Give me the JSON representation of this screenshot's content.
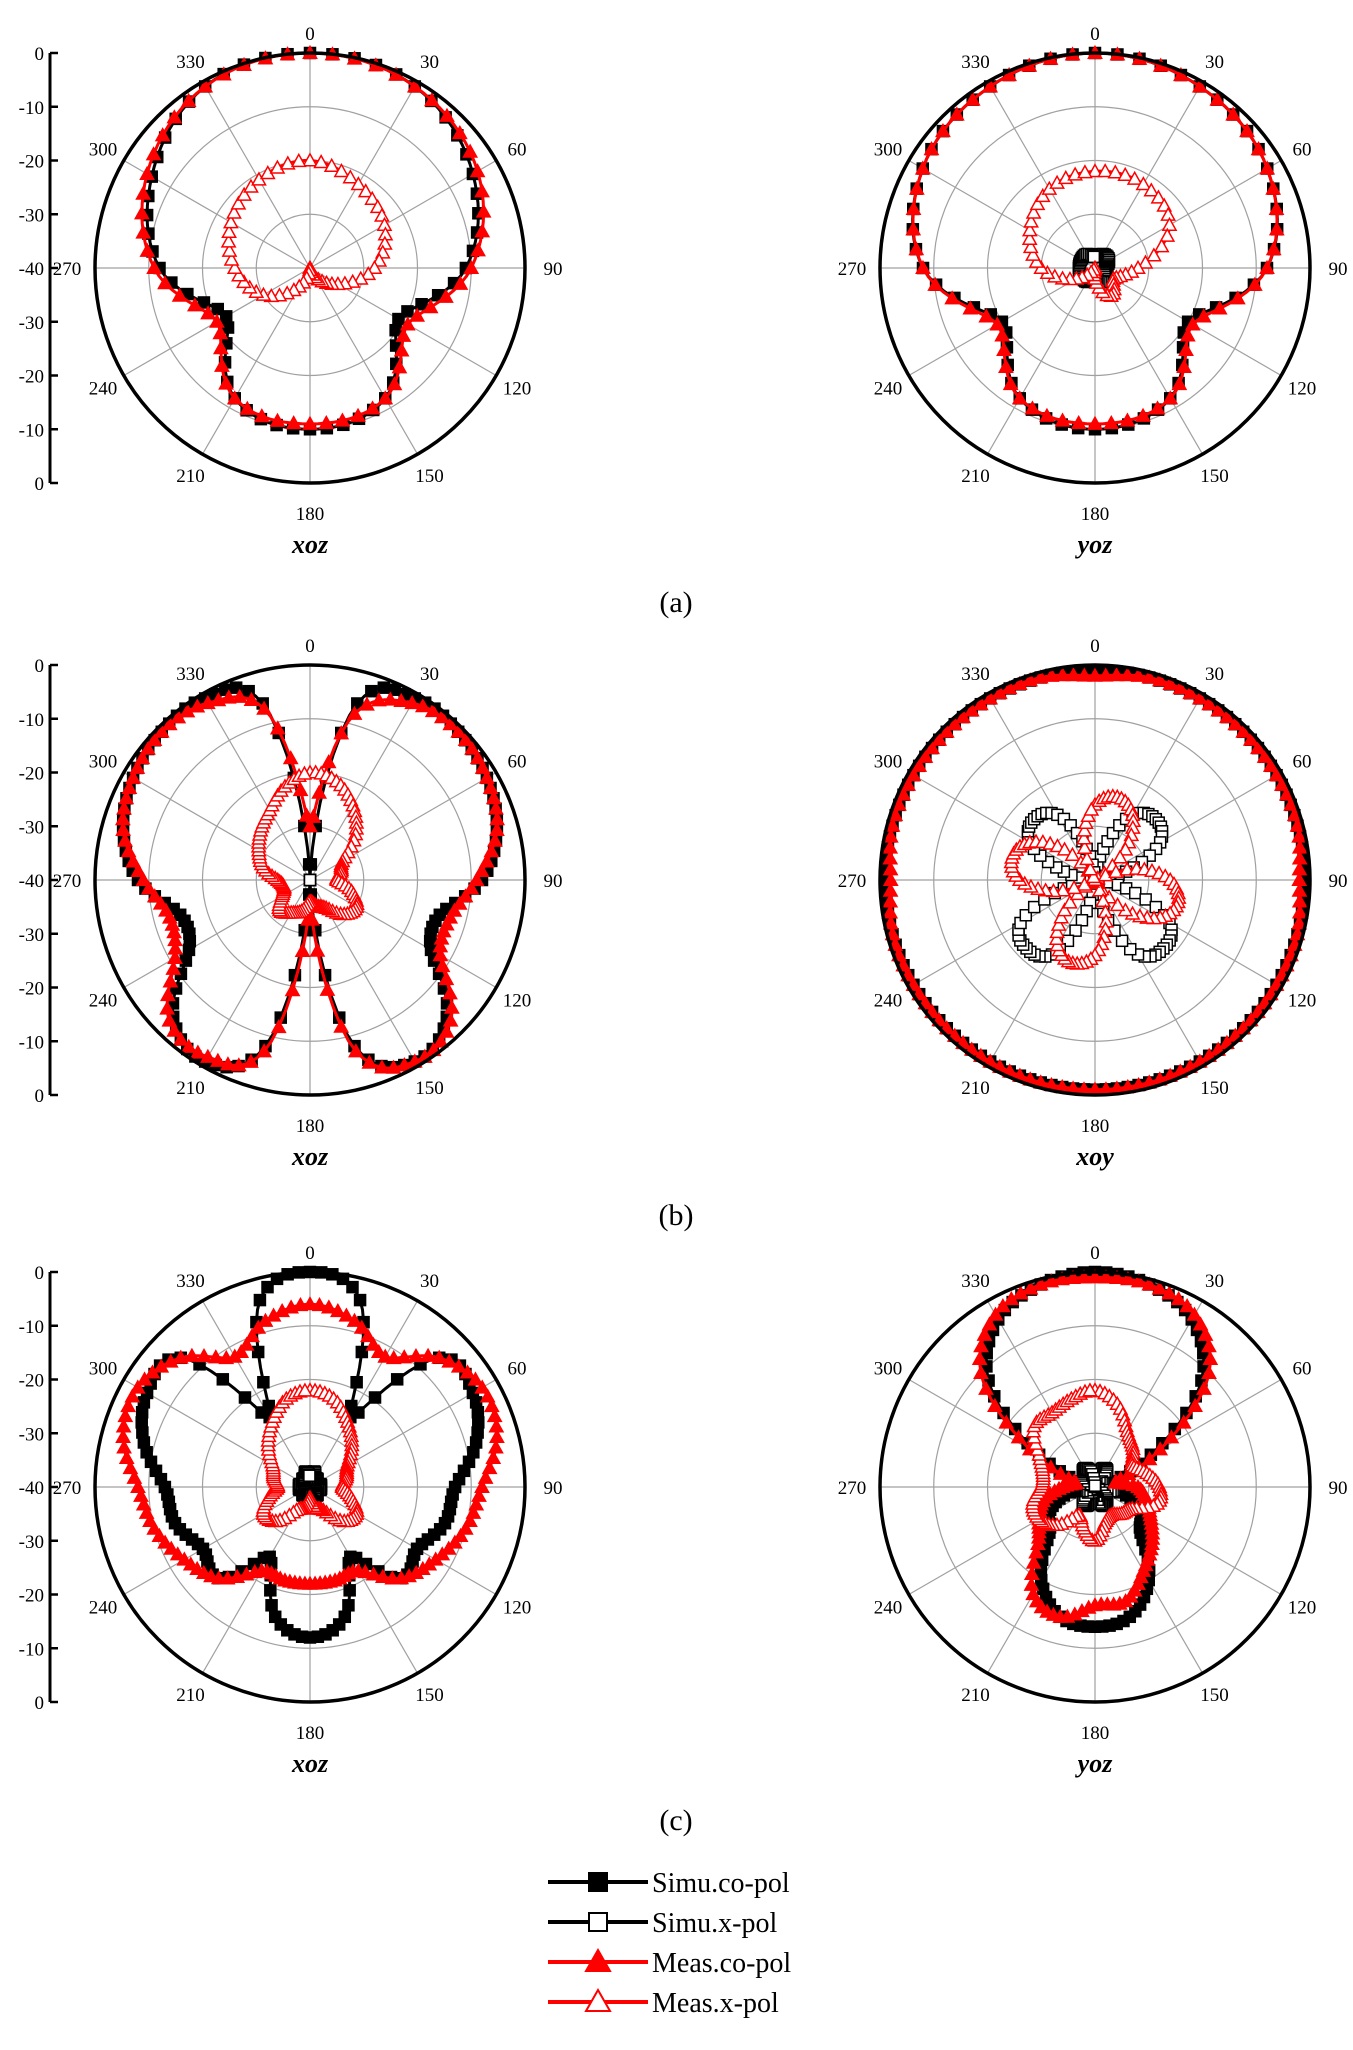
{
  "chart_data": [
    {
      "type": "line",
      "panel": "a",
      "plane_label": "xoz",
      "radial_ticks": [
        "0",
        "-10",
        "-20",
        "-30",
        "-40",
        "-30",
        "-20",
        "-10",
        "0"
      ],
      "angle_ticks": [
        "0",
        "30",
        "60",
        "90",
        "120",
        "150",
        "180",
        "210",
        "240",
        "270",
        "300",
        "330"
      ],
      "rlim": [
        -40,
        0
      ],
      "angles_deg": [
        0,
        30,
        60,
        90,
        120,
        150,
        180,
        210,
        240,
        270,
        300,
        330
      ],
      "series": [
        {
          "name": "Simu.co-pol",
          "values": [
            0,
            -1,
            -5,
            -11,
            -21,
            -12,
            -10,
            -12,
            -22,
            -12,
            -6,
            -1
          ]
        },
        {
          "name": "Meas.co-pol",
          "values": [
            0,
            -1,
            -4,
            -10,
            -19,
            -12,
            -11,
            -12,
            -20,
            -11,
            -5,
            -1
          ]
        },
        {
          "name": "Meas.x-pol",
          "values": [
            -20,
            -22,
            -24,
            -28,
            -34,
            -38,
            -40,
            -36,
            -30,
            -26,
            -23,
            -21
          ]
        }
      ]
    },
    {
      "type": "line",
      "panel": "a",
      "plane_label": "yoz",
      "radial_ticks": [],
      "angle_ticks": [
        "0",
        "30",
        "60",
        "90",
        "120",
        "150",
        "180",
        "210",
        "240",
        "270",
        "300",
        "330"
      ],
      "rlim": [
        -40,
        0
      ],
      "angles_deg": [
        0,
        30,
        60,
        90,
        120,
        150,
        180,
        210,
        240,
        270,
        300,
        330
      ],
      "series": [
        {
          "name": "Simu.co-pol",
          "values": [
            0,
            -1,
            -3,
            -8,
            -20,
            -12,
            -10,
            -12,
            -20,
            -8,
            -3,
            -1
          ]
        },
        {
          "name": "Simu.x-pol",
          "values": [
            -38,
            -37,
            -37,
            -38,
            -38,
            -37,
            -38,
            -37,
            -37,
            -37,
            -37,
            -37
          ]
        },
        {
          "name": "Meas.co-pol",
          "values": [
            0,
            -1,
            -3,
            -8,
            -19,
            -12,
            -11,
            -12,
            -19,
            -8,
            -3,
            -1
          ]
        },
        {
          "name": "Meas.x-pol",
          "values": [
            -22,
            -22,
            -24,
            -32,
            -36,
            -34,
            -38,
            -40,
            -36,
            -30,
            -26,
            -23
          ]
        }
      ]
    },
    {
      "type": "line",
      "panel": "b",
      "plane_label": "xoz",
      "radial_ticks": [
        "0",
        "-10",
        "-20",
        "-30",
        "-40",
        "-30",
        "-20",
        "-10",
        "0"
      ],
      "angle_ticks": [
        "0",
        "30",
        "60",
        "90",
        "120",
        "150",
        "180",
        "210",
        "240",
        "270",
        "300",
        "330"
      ],
      "rlim": [
        -40,
        0
      ],
      "angles_deg": [
        0,
        15,
        30,
        45,
        60,
        75,
        90,
        105,
        120,
        135,
        150,
        165,
        180,
        195,
        210,
        225,
        240,
        255,
        270,
        285,
        300,
        315,
        330,
        345
      ],
      "series": [
        {
          "name": "Simu.co-pol",
          "values": [
            -40,
            -6,
            -1,
            -1,
            -2,
            -4,
            -8,
            -15,
            -14,
            -4,
            -1,
            -8,
            -40,
            -8,
            -1,
            -4,
            -14,
            -15,
            -8,
            -4,
            -2,
            -1,
            -1,
            -6
          ]
        },
        {
          "name": "Simu.x-pol",
          "values": [
            -40,
            -40,
            -40,
            -40,
            -40,
            -40,
            -40,
            -40,
            -40,
            -40,
            -40,
            -40,
            -40,
            -40,
            -40,
            -40,
            -40,
            -40,
            -40,
            -40,
            -40,
            -40,
            -40,
            -40
          ]
        },
        {
          "name": "Meas.co-pol",
          "values": [
            -30,
            -8,
            -2,
            -1,
            -2,
            -4,
            -9,
            -13,
            -12,
            -3,
            -1,
            -7,
            -35,
            -7,
            -2,
            -3,
            -11,
            -13,
            -9,
            -4,
            -2,
            -1,
            -2,
            -7
          ]
        },
        {
          "name": "Meas.x-pol",
          "values": [
            -20,
            -21,
            -24,
            -28,
            -33,
            -34,
            -35,
            -32,
            -30,
            -31,
            -34,
            -35,
            -36,
            -34,
            -33,
            -32,
            -34,
            -35,
            -34,
            -31,
            -29,
            -27,
            -25,
            -22
          ]
        }
      ]
    },
    {
      "type": "line",
      "panel": "b",
      "plane_label": "xoy",
      "radial_ticks": [],
      "angle_ticks": [
        "0",
        "30",
        "60",
        "90",
        "120",
        "150",
        "180",
        "210",
        "240",
        "270",
        "300",
        "330"
      ],
      "rlim": [
        -40,
        0
      ],
      "angles_deg": [
        0,
        15,
        30,
        45,
        60,
        75,
        90,
        105,
        120,
        135,
        150,
        165,
        180,
        195,
        210,
        225,
        240,
        255,
        270,
        285,
        300,
        315,
        330,
        345
      ],
      "series": [
        {
          "name": "Simu.co-pol",
          "values": [
            -1,
            -1,
            -1,
            -1,
            -1,
            -1,
            -1,
            -1,
            -1,
            -1,
            -1,
            -1,
            -1,
            -1,
            -1,
            -1,
            -1,
            -1,
            -1,
            -1,
            -1,
            -1,
            -1,
            -1
          ]
        },
        {
          "name": "Simu.x-pol",
          "values": [
            -40,
            -34,
            -26,
            -24,
            -26,
            -34,
            -40,
            -34,
            -24,
            -22,
            -24,
            -34,
            -40,
            -34,
            -24,
            -22,
            -24,
            -34,
            -40,
            -34,
            -26,
            -24,
            -26,
            -34
          ]
        },
        {
          "name": "Meas.co-pol",
          "values": [
            -2,
            -1,
            -1,
            -1,
            -1,
            -1,
            -2,
            -1,
            -1,
            -1,
            -1,
            -1,
            -1,
            -1,
            -1,
            -1,
            -1,
            -1,
            -2,
            -1,
            -1,
            -1,
            -1,
            -1
          ]
        },
        {
          "name": "Meas.x-pol",
          "values": [
            -26,
            -24,
            -26,
            -32,
            -40,
            -32,
            -26,
            -24,
            -26,
            -32,
            -40,
            -32,
            -26,
            -24,
            -26,
            -32,
            -40,
            -32,
            -26,
            -24,
            -26,
            -32,
            -40,
            -32
          ]
        }
      ]
    },
    {
      "type": "line",
      "panel": "c",
      "plane_label": "xoz",
      "radial_ticks": [
        "0",
        "-10",
        "-20",
        "-30",
        "-40",
        "-30",
        "-20",
        "-10",
        "0"
      ],
      "angle_ticks": [
        "0",
        "30",
        "60",
        "90",
        "120",
        "150",
        "180",
        "210",
        "240",
        "270",
        "300",
        "330"
      ],
      "rlim": [
        -40,
        0
      ],
      "angles_deg": [
        0,
        15,
        30,
        45,
        60,
        75,
        90,
        105,
        120,
        135,
        150,
        165,
        180,
        195,
        210,
        225,
        240,
        255,
        270,
        285,
        300,
        315,
        330,
        345
      ],
      "series": [
        {
          "name": "Simu.co-pol",
          "values": [
            0,
            -4,
            -25,
            -6,
            -5,
            -8,
            -13,
            -14,
            -17,
            -16,
            -25,
            -15,
            -12,
            -15,
            -25,
            -16,
            -17,
            -14,
            -13,
            -8,
            -5,
            -6,
            -25,
            -4
          ]
        },
        {
          "name": "Simu.x-pol",
          "values": [
            -38,
            -37,
            -38,
            -38,
            -39,
            -38,
            -38,
            -38,
            -39,
            -38,
            -38,
            -37,
            -38,
            -37,
            -38,
            -38,
            -39,
            -38,
            -38,
            -38,
            -39,
            -38,
            -38,
            -37
          ]
        },
        {
          "name": "Meas.co-pol",
          "values": [
            -6,
            -8,
            -12,
            -6,
            -3,
            -4,
            -8,
            -10,
            -13,
            -16,
            -22,
            -22,
            -22,
            -22,
            -22,
            -16,
            -13,
            -10,
            -8,
            -4,
            -3,
            -6,
            -12,
            -8
          ]
        },
        {
          "name": "Meas.x-pol",
          "values": [
            -22,
            -23,
            -26,
            -29,
            -32,
            -33,
            -34,
            -32,
            -30,
            -31,
            -35,
            -36,
            -38,
            -36,
            -35,
            -31,
            -30,
            -32,
            -34,
            -33,
            -32,
            -29,
            -26,
            -23
          ]
        }
      ]
    },
    {
      "type": "line",
      "panel": "c",
      "plane_label": "yoz",
      "radial_ticks": [],
      "angle_ticks": [
        "0",
        "30",
        "60",
        "90",
        "120",
        "150",
        "180",
        "210",
        "240",
        "270",
        "300",
        "330"
      ],
      "rlim": [
        -40,
        0
      ],
      "angles_deg": [
        0,
        15,
        30,
        45,
        60,
        75,
        90,
        105,
        120,
        135,
        150,
        165,
        180,
        195,
        210,
        225,
        240,
        255,
        270,
        285,
        300,
        315,
        330,
        345
      ],
      "series": [
        {
          "name": "Simu.co-pol",
          "values": [
            0,
            -1,
            -4,
            -12,
            -28,
            -38,
            -40,
            -34,
            -30,
            -28,
            -20,
            -15,
            -14,
            -15,
            -20,
            -28,
            -30,
            -34,
            -40,
            -38,
            -28,
            -12,
            -4,
            -1
          ]
        },
        {
          "name": "Simu.x-pol",
          "values": [
            -40,
            -37,
            -36,
            -37,
            -40,
            -37,
            -36,
            -37,
            -40,
            -37,
            -36,
            -37,
            -40,
            -37,
            -36,
            -37,
            -40,
            -37,
            -36,
            -37,
            -40,
            -37,
            -36,
            -37
          ]
        },
        {
          "name": "Meas.co-pol",
          "values": [
            -1,
            -1,
            -3,
            -10,
            -26,
            -36,
            -32,
            -30,
            -28,
            -25,
            -22,
            -18,
            -18,
            -15,
            -17,
            -25,
            -28,
            -30,
            -34,
            -36,
            -26,
            -10,
            -3,
            -1
          ]
        },
        {
          "name": "Meas.x-pol",
          "values": [
            -22,
            -24,
            -28,
            -30,
            -32,
            -30,
            -28,
            -28,
            -32,
            -33,
            -34,
            -33,
            -30,
            -32,
            -34,
            -30,
            -28,
            -28,
            -30,
            -30,
            -28,
            -24,
            -24,
            -23
          ]
        }
      ]
    }
  ],
  "panel_labels": [
    "(a)",
    "(b)",
    "(c)"
  ],
  "legend": [
    {
      "name": "Simu.co-pol",
      "color": "#000000",
      "marker": "filled-square"
    },
    {
      "name": "Simu.x-pol",
      "color": "#000000",
      "marker": "open-square"
    },
    {
      "name": "Meas.co-pol",
      "color": "#ff0000",
      "marker": "filled-triangle"
    },
    {
      "name": "Meas.x-pol",
      "color": "#ff0000",
      "marker": "open-triangle"
    }
  ],
  "colors": {
    "simu": "#000000",
    "meas": "#ff0000",
    "grid": "#a0a0a0"
  }
}
